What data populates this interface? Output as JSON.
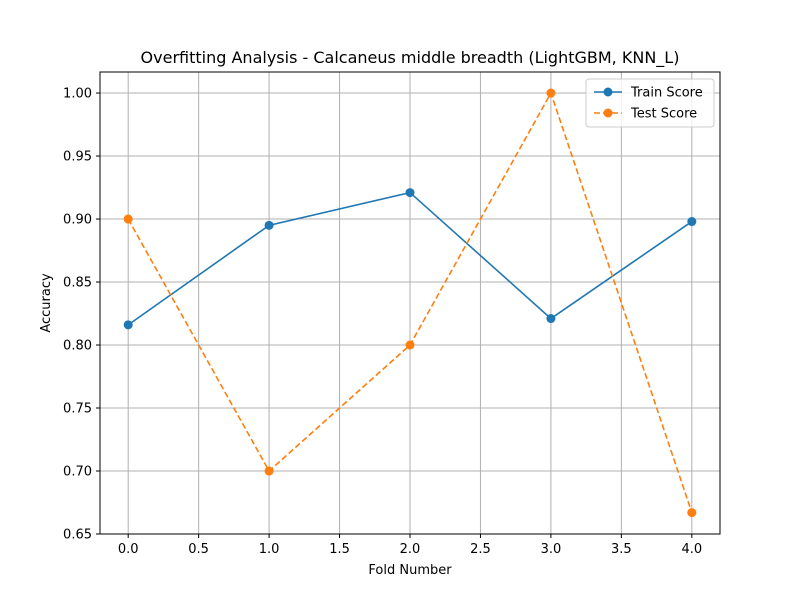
{
  "chart_data": {
    "type": "line",
    "title": "Overfitting Analysis - Calcaneus middle breadth (LightGBM, KNN_L)",
    "xlabel": "Fold Number",
    "ylabel": "Accuracy",
    "xlim": [
      -0.2,
      4.2
    ],
    "ylim": [
      0.65,
      1.0167
    ],
    "xticks": [
      0.0,
      0.5,
      1.0,
      1.5,
      2.0,
      2.5,
      3.0,
      3.5,
      4.0
    ],
    "xtick_labels": [
      "0.0",
      "0.5",
      "1.0",
      "1.5",
      "2.0",
      "2.5",
      "3.0",
      "3.5",
      "4.0"
    ],
    "yticks": [
      0.65,
      0.7,
      0.75,
      0.8,
      0.85,
      0.9,
      0.95,
      1.0
    ],
    "ytick_labels": [
      "0.65",
      "0.70",
      "0.75",
      "0.80",
      "0.85",
      "0.90",
      "0.95",
      "1.00"
    ],
    "grid": true,
    "legend_position": "top-right",
    "x": [
      0,
      1,
      2,
      3,
      4
    ],
    "series": [
      {
        "name": "Train Score",
        "values": [
          0.816,
          0.895,
          0.921,
          0.821,
          0.898
        ],
        "color": "#1f77b4",
        "linestyle": "solid",
        "marker": "circle"
      },
      {
        "name": "Test Score",
        "values": [
          0.9,
          0.7,
          0.8,
          1.0,
          0.667
        ],
        "color": "#ff7f0e",
        "linestyle": "dashed",
        "marker": "circle"
      }
    ]
  }
}
